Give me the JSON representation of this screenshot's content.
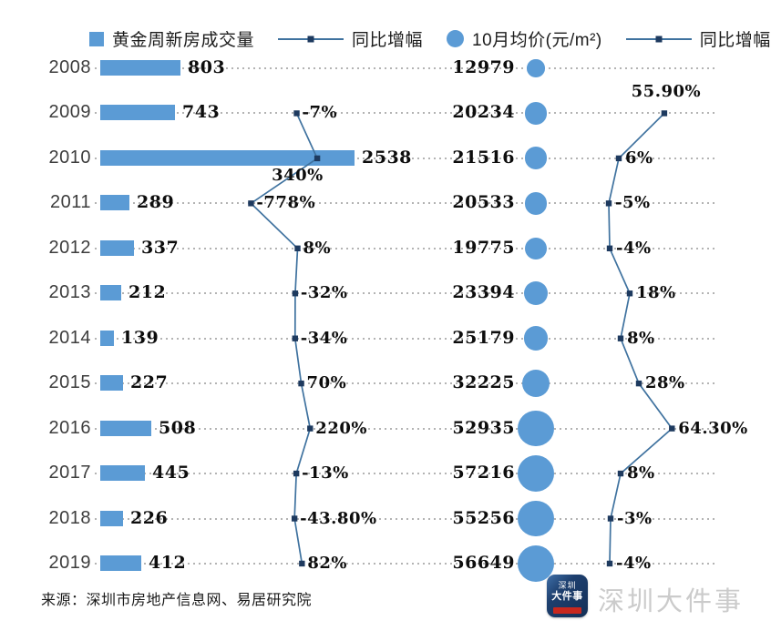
{
  "legend": {
    "items": [
      {
        "label": "黄金周新房成交量",
        "swatch": "bar-square"
      },
      {
        "label": "同比增幅",
        "swatch": "line-marker"
      },
      {
        "label": "10月均价(元/m²)",
        "swatch": "bubble-circle"
      },
      {
        "label": "同比增幅",
        "swatch": "line-marker"
      }
    ]
  },
  "chart_data": {
    "type": "combo",
    "categories": [
      "2008",
      "2009",
      "2010",
      "2011",
      "2012",
      "2013",
      "2014",
      "2015",
      "2016",
      "2017",
      "2018",
      "2019"
    ],
    "series": [
      {
        "name": "黄金周新房成交量",
        "type": "bar",
        "values": [
          803,
          743,
          2538,
          289,
          337,
          212,
          139,
          227,
          508,
          445,
          226,
          412
        ],
        "labels": [
          "803",
          "743",
          "2538",
          "289",
          "337",
          "212",
          "139",
          "227",
          "508",
          "445",
          "226",
          "412"
        ]
      },
      {
        "name": "同比增幅(成交量)",
        "type": "line",
        "values": [
          null,
          -7,
          340,
          -778,
          8,
          -32,
          -34,
          70,
          220,
          -13,
          -43.8,
          82
        ],
        "labels": [
          "",
          "-7%",
          "340%",
          "-778%",
          "8%",
          "-32%",
          "-34%",
          "70%",
          "220%",
          "-13%",
          "-43.80%",
          "82%"
        ]
      },
      {
        "name": "10月均价(元/m²)",
        "type": "bubble",
        "values": [
          12979,
          20234,
          21516,
          20533,
          19775,
          23394,
          25179,
          32225,
          52935,
          57216,
          55256,
          56649
        ],
        "labels": [
          "12979",
          "20234",
          "21516",
          "20533",
          "19775",
          "23394",
          "25179",
          "32225",
          "52935",
          "57216",
          "55256",
          "56649"
        ]
      },
      {
        "name": "同比增幅(均价)",
        "type": "line",
        "values": [
          null,
          55.9,
          6,
          -5,
          -4,
          18,
          8,
          28,
          64.3,
          8,
          -3,
          -4
        ],
        "labels": [
          "",
          "55.90%",
          "6%",
          "-5%",
          "-4%",
          "18%",
          "8%",
          "28%",
          "64.30%",
          "8%",
          "-3%",
          "-4%"
        ]
      }
    ],
    "title": "",
    "xlabel": "",
    "ylabel": "",
    "layout_hints": {
      "orientation": "horizontal rows by year",
      "grid": "dotted row leader lines",
      "legend_position": "top"
    }
  },
  "colors": {
    "bar": "#5B9BD5",
    "bubble": "#5B9BD5",
    "line": "#3F729F",
    "marker": "#1E3A5F",
    "dotted": "#B3B3B3",
    "badge_red": "#C8281E"
  },
  "source": "来源：深圳市房地产信息网、易居研究院",
  "watermark": {
    "badge_line1": "深圳",
    "badge_line2": "大件事",
    "text": "深圳大件事"
  }
}
